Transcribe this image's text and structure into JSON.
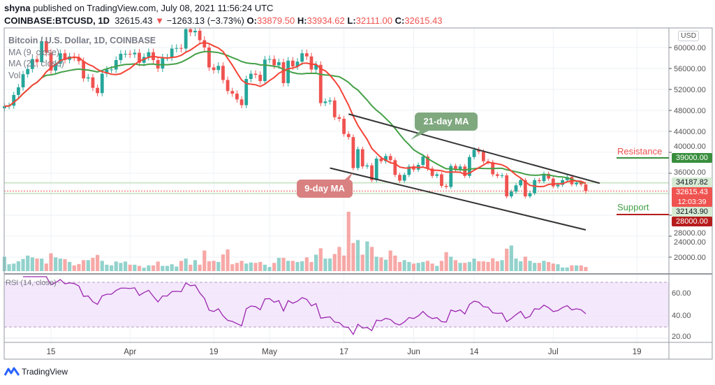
{
  "header": {
    "author": "shyna",
    "published_text": "published on TradingView.com, July 08, 2021 11:56:24 UTC",
    "symbol": "COINBASE:BTCUSD, 1D",
    "last": "32615.43",
    "change": "−1263.13 (−3.73%)",
    "o_label": "O:",
    "o": "33879.50",
    "h_label": "H:",
    "h": "33934.62",
    "l_label": "L:",
    "l": "32111.00",
    "c_label": "C:",
    "c": "32615.43"
  },
  "legend": {
    "title": "Bitcoin / U.S. Dollar, 1D, COINBASE",
    "ma9": "MA (9, close)",
    "ma21": "MA (21, close)",
    "vol": "Vol"
  },
  "currency": "USD",
  "annotations": {
    "ma21_callout": "21-day MA",
    "ma9_callout": "9-day MA",
    "resistance_label": "Resistance",
    "support_label": "Support"
  },
  "price_tags": {
    "resistance": "39000.00",
    "ma21": "34187.82",
    "last": "32615.43",
    "countdown": "12:03:39",
    "ma9": "32143.90",
    "support": "28000.00"
  },
  "rsi": {
    "label": "RSI (14, close)",
    "ticks": [
      "60.00",
      "40.00",
      "20.00"
    ]
  },
  "brand": "TradingView",
  "colors": {
    "up": "#26a69a",
    "down": "#ef5350",
    "ma9": "#f44336",
    "ma21": "#43a047",
    "rsi": "#9c27b0",
    "resistance": "#388e3c",
    "support": "#b71c1c"
  },
  "chart_data": {
    "type": "candlestick",
    "start_date": "2021-03-05",
    "end_date": "2021-07-08",
    "first_open": 48400,
    "last_candle": {
      "open": 33879.5,
      "high": 33934.62,
      "low": 32111.0,
      "close": 32615.43
    },
    "closes": [
      48800,
      48900,
      50950,
      52400,
      54900,
      55900,
      57800,
      57200,
      61200,
      59000,
      55600,
      56900,
      58900,
      57650,
      58300,
      58100,
      57400,
      54100,
      54300,
      52300,
      51300,
      55000,
      55800,
      55800,
      57600,
      58800,
      58800,
      58700,
      59000,
      57100,
      58200,
      59100,
      57600,
      56000,
      58100,
      58100,
      59800,
      59900,
      59800,
      63500,
      62900,
      63200,
      61400,
      60000,
      56200,
      55700,
      56500,
      53800,
      51700,
      51200,
      50100,
      49000,
      54000,
      55000,
      54800,
      53600,
      57700,
      57800,
      56600,
      57200,
      53200,
      57500,
      56400,
      57300,
      58900,
      58300,
      55800,
      56700,
      49400,
      49700,
      49900,
      46700,
      46400,
      43500,
      42900,
      37000,
      40600,
      37300,
      37500,
      34700,
      38800,
      38300,
      39300,
      38500,
      35700,
      34600,
      35700,
      37300,
      36700,
      37600,
      39200,
      36900,
      35500,
      35800,
      33600,
      33400,
      37400,
      36700,
      37300,
      35500,
      39100,
      40500,
      40100,
      38300,
      38100,
      35800,
      35500,
      35600,
      31600,
      32500,
      33700,
      34700,
      31600,
      32200,
      34700,
      34500,
      35900,
      35000,
      33500,
      33800,
      34700,
      35300,
      33900,
      34200,
      33880,
      32615.43
    ],
    "volume_relative": [
      63,
      30,
      33,
      43,
      53,
      68,
      60,
      55,
      55,
      33,
      78,
      60,
      55,
      52,
      40,
      25,
      31,
      48,
      48,
      58,
      71,
      45,
      28,
      25,
      42,
      36,
      42,
      28,
      28,
      23,
      15,
      25,
      25,
      42,
      23,
      23,
      30,
      20,
      45,
      55,
      28,
      48,
      28,
      90,
      43,
      45,
      40,
      73,
      95,
      30,
      36,
      45,
      33,
      38,
      36,
      40,
      28,
      18,
      36,
      58,
      58,
      45,
      45,
      40,
      43,
      60,
      40,
      72,
      100,
      55,
      55,
      75,
      106,
      68,
      260,
      123,
      136,
      72,
      130,
      106,
      63,
      60,
      50,
      90,
      68,
      40,
      48,
      40,
      33,
      36,
      40,
      45,
      33,
      23,
      45,
      83,
      63,
      48,
      36,
      36,
      40,
      55,
      43,
      43,
      40,
      56,
      43,
      48,
      98,
      112,
      55,
      43,
      63,
      45,
      36,
      36,
      45,
      40,
      33,
      30,
      16,
      16,
      25,
      25,
      25,
      18
    ],
    "price_axis": {
      "ticks": [
        60000,
        56000,
        52000,
        48000,
        44000,
        40000,
        36000,
        28000,
        24000,
        20000
      ],
      "range": [
        18000,
        64800
      ]
    },
    "time_ticks": [
      {
        "label": "15",
        "date": "2021-03-15"
      },
      {
        "label": "Apr",
        "date": "2021-04-01"
      },
      {
        "label": "19",
        "date": "2021-04-19"
      },
      {
        "label": "May",
        "date": "2021-05-01"
      },
      {
        "label": "17",
        "date": "2021-05-17"
      },
      {
        "label": "Jun",
        "date": "2021-06-01"
      },
      {
        "label": "14",
        "date": "2021-06-14"
      },
      {
        "label": "Jul",
        "date": "2021-07-01"
      },
      {
        "label": "19",
        "date": "2021-07-19"
      }
    ],
    "indicators": {
      "ma_periods": [
        9,
        21
      ],
      "rsi_period": 14,
      "rsi_band": [
        30,
        70
      ]
    },
    "trend_channel": {
      "upper": [
        {
          "date": "2021-05-18",
          "price": 47300
        },
        {
          "date": "2021-07-11",
          "price": 34100
        }
      ],
      "lower": [
        {
          "date": "2021-05-14",
          "price": 37000
        },
        {
          "date": "2021-07-08",
          "price": 25200
        }
      ]
    },
    "levels": {
      "resistance": 39000,
      "support": 28000,
      "ma21_last": 34187.82,
      "ma9_last": 32143.9
    },
    "grid": true
  }
}
